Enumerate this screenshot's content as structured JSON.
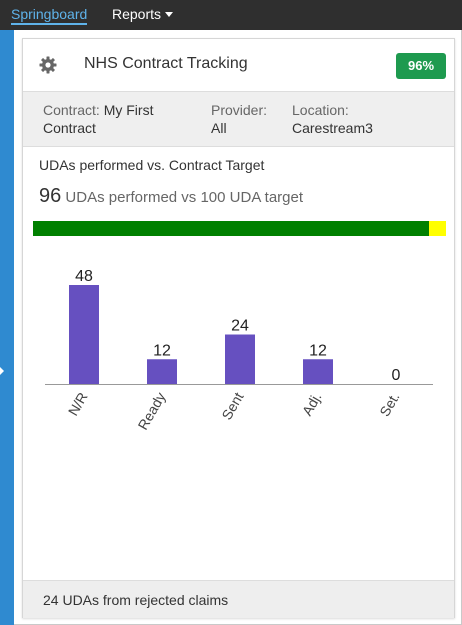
{
  "nav": {
    "items": [
      {
        "label": "Springboard"
      },
      {
        "label": "Reports"
      }
    ]
  },
  "card": {
    "title": "NHS Contract Tracking",
    "badge": "96%",
    "icon": "gear-icon",
    "info": {
      "contract": {
        "label": "Contract:",
        "value_line1": "My First",
        "value_line2": "Contract"
      },
      "provider": {
        "label": "Provider:",
        "value": "All"
      },
      "location": {
        "label": "Location:",
        "value": "Carestream3"
      }
    },
    "section_title": "UDAs performed vs. Contract Target",
    "summary": {
      "performed": "96",
      "text": "UDAs performed vs 100 UDA target"
    },
    "progress": {
      "fraction": 0.96,
      "fill_color": "#008000",
      "track_color": "#ffff00"
    },
    "footer": "24 UDAs from rejected claims"
  },
  "colors": {
    "topbar": "#2f2f2f",
    "accent": "#5fb3ea",
    "sidebar": "#2f8ad0",
    "badge": "#1e9a4f",
    "bar": "#6650c0"
  },
  "chart_data": {
    "type": "bar",
    "categories": [
      "N/R",
      "Ready",
      "Sent",
      "Adj.",
      "Set."
    ],
    "values": [
      48,
      12,
      24,
      12,
      0
    ],
    "ylim": [
      0,
      48
    ]
  }
}
